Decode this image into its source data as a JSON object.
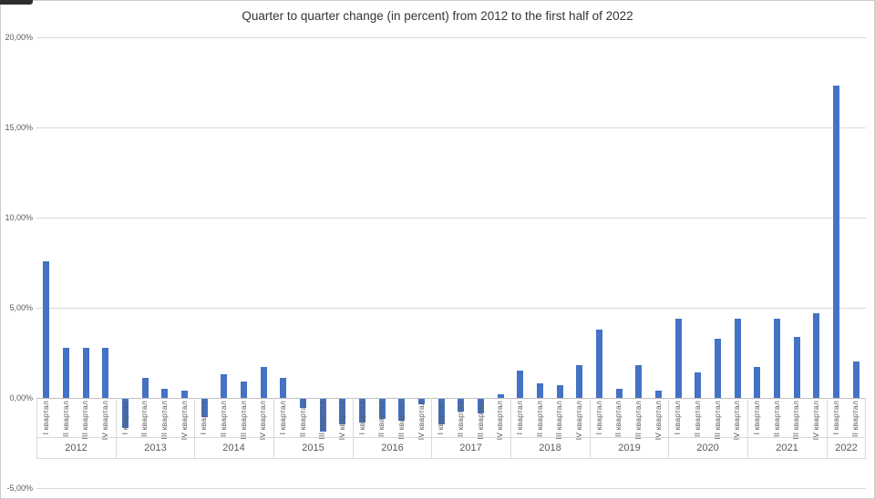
{
  "chart_data": {
    "type": "bar",
    "title": "Quarter to quarter change (in percent) from 2012 to the first half of 2022",
    "bar_color": "#4472C4",
    "gridline_color": "#D9D9D9",
    "legend": false,
    "grid": true,
    "y_axis": {
      "min": -5,
      "max": 20,
      "tick_step": 5,
      "ticks": [
        {
          "value": 20,
          "label": "20,00%"
        },
        {
          "value": 15,
          "label": "15,00%"
        },
        {
          "value": 10,
          "label": "10,00%"
        },
        {
          "value": 5,
          "label": "5,00%"
        },
        {
          "value": 0,
          "label": "0,00%"
        },
        {
          "value": -5,
          "label": "-5,00%"
        }
      ]
    },
    "quarter_label_names": [
      "I квартал",
      "II квартал",
      "III квартал",
      "IV квартал"
    ],
    "groups": [
      {
        "year": "2012",
        "values": [
          7.6,
          2.8,
          2.8,
          2.8
        ]
      },
      {
        "year": "2013",
        "values": [
          -1.6,
          1.1,
          0.5,
          0.4
        ]
      },
      {
        "year": "2014",
        "values": [
          -1.0,
          1.3,
          0.9,
          1.7
        ]
      },
      {
        "year": "2015",
        "values": [
          1.1,
          -0.5,
          -1.8,
          -1.4
        ]
      },
      {
        "year": "2016",
        "values": [
          -1.3,
          -1.1,
          -1.2,
          -0.3
        ]
      },
      {
        "year": "2017",
        "values": [
          -1.4,
          -0.7,
          -0.8,
          0.2
        ]
      },
      {
        "year": "2018",
        "values": [
          1.5,
          0.8,
          0.7,
          1.8
        ]
      },
      {
        "year": "2019",
        "values": [
          3.8,
          0.5,
          1.8,
          0.4
        ]
      },
      {
        "year": "2020",
        "values": [
          4.4,
          1.4,
          3.3,
          4.4
        ]
      },
      {
        "year": "2021",
        "values": [
          1.7,
          4.4,
          3.4,
          4.7
        ]
      },
      {
        "year": "2022",
        "values": [
          17.3,
          2.0
        ]
      }
    ]
  }
}
